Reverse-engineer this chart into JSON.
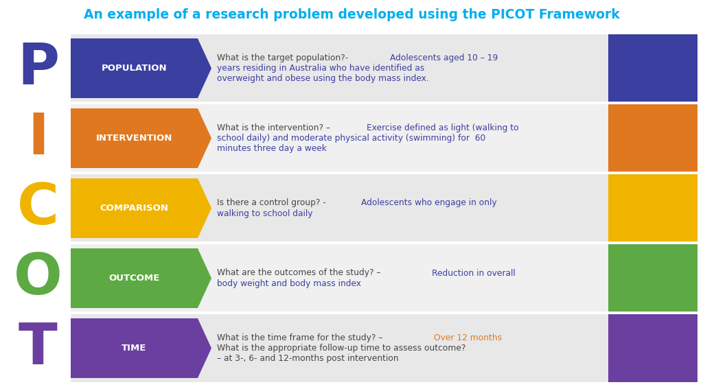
{
  "title": "An example of a research problem developed using the PICOT Framework",
  "title_color": "#00AEEF",
  "background_color": "#FFFFFF",
  "rows": [
    {
      "letter": "P",
      "letter_color": "#3B3FA0",
      "label": "POPULATION",
      "color": "#3B3FA0",
      "row_bg": "#E8E8E8",
      "lines": [
        [
          {
            "text": "What is the target population?- ",
            "bold": false,
            "black": true
          },
          {
            "text": "Adolescents aged 10 – 19",
            "bold": false,
            "black": false
          }
        ],
        [
          {
            "text": "years residing in Australia who have identified as",
            "bold": false,
            "black": false
          }
        ],
        [
          {
            "text": "overweight and obese using the body mass index.",
            "bold": false,
            "black": false
          }
        ]
      ],
      "answer_color": "#3B3FA0"
    },
    {
      "letter": "I",
      "letter_color": "#E07820",
      "label": "INTERVENTION",
      "color": "#E07820",
      "row_bg": "#F0F0F0",
      "lines": [
        [
          {
            "text": "What is the intervention? – ",
            "bold": false,
            "black": true
          },
          {
            "text": "Exercise defined as light (walking to",
            "bold": false,
            "black": false
          }
        ],
        [
          {
            "text": "school daily) and moderate physical activity (swimming) for  60",
            "bold": false,
            "black": false
          }
        ],
        [
          {
            "text": "minutes three day a week",
            "bold": false,
            "black": false
          }
        ]
      ],
      "answer_color": "#3B3FA0"
    },
    {
      "letter": "C",
      "letter_color": "#F0B400",
      "label": "COMPARISON",
      "color": "#F0B400",
      "row_bg": "#E8E8E8",
      "lines": [
        [
          {
            "text": "Is there a control group? - ",
            "bold": false,
            "black": true
          },
          {
            "text": "Adolescents who engage in only",
            "bold": false,
            "black": false
          }
        ],
        [
          {
            "text": "walking to school daily",
            "bold": false,
            "black": false
          }
        ]
      ],
      "answer_color": "#3B3FA0"
    },
    {
      "letter": "O",
      "letter_color": "#5DAA44",
      "label": "OUTCOME",
      "color": "#5DAA44",
      "row_bg": "#F0F0F0",
      "lines": [
        [
          {
            "text": "What are the outcomes of the study? – ",
            "bold": false,
            "black": true
          },
          {
            "text": "Reduction in overall",
            "bold": false,
            "black": false
          }
        ],
        [
          {
            "text": "body weight and body mass index",
            "bold": false,
            "black": false
          }
        ]
      ],
      "answer_color": "#3B3FA0"
    },
    {
      "letter": "T",
      "letter_color": "#6B3FA0",
      "label": "TIME",
      "color": "#6B3FA0",
      "row_bg": "#E8E8E8",
      "lines": [
        [
          {
            "text": "What is the time frame for the study? – ",
            "bold": false,
            "black": true
          },
          {
            "text": "Over 12 months",
            "bold": false,
            "black": false
          }
        ],
        [
          {
            "text": "What is the appropriate follow-up time to assess outcome?",
            "bold": false,
            "black": true
          }
        ],
        [
          {
            "text": "– at 3-, 6- and 12-months post intervention",
            "bold": false,
            "black": true
          }
        ]
      ],
      "answer_color": "#E07820"
    }
  ]
}
